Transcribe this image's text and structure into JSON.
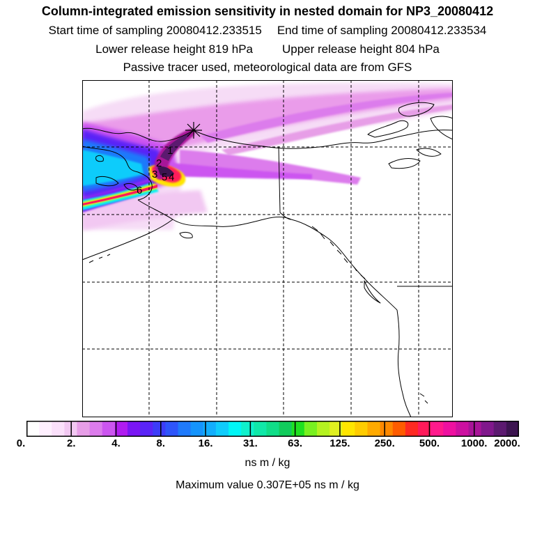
{
  "titles": {
    "line1": "Column-integrated emission sensitivity in nested domain for NP3_20080412",
    "start": "Start time of sampling 20080412.233515",
    "end": "End time of sampling 20080412.233534",
    "lower": "Lower release height  819 hPa",
    "upper": "Upper release height  804 hPa",
    "line4": "Passive tracer used, meteorological data are from GFS"
  },
  "map": {
    "gridlines": "dashed",
    "release_marker": "star-icon",
    "trajectory_labels": [
      "1",
      "2",
      "3",
      "4",
      "5",
      "6"
    ]
  },
  "colorbar": {
    "ticks": [
      "0.",
      "2.",
      "4.",
      "8.",
      "16.",
      "31.",
      "63.",
      "125.",
      "250.",
      "500.",
      "1000.",
      "2000."
    ],
    "colors": [
      "#ffffff",
      "#fff0ff",
      "#fbe0fb",
      "#f2c8f2",
      "#e79ee7",
      "#dc7cec",
      "#cc55f0",
      "#b01cf0",
      "#7a16f4",
      "#5a24f7",
      "#3c3cf8",
      "#2e55fa",
      "#1f7afb",
      "#1594fc",
      "#12aefc",
      "#10ccfb",
      "#00f5f5",
      "#10f0cc",
      "#10e8a8",
      "#10dd88",
      "#11cc5c",
      "#1fe020",
      "#78f020",
      "#b4f220",
      "#e0f020",
      "#ffe600",
      "#ffcc00",
      "#ffaa00",
      "#ff8800",
      "#ff5c00",
      "#ff2a22",
      "#ff1a5a",
      "#ff1a8c",
      "#ee10a0",
      "#cc10a0",
      "#a81498",
      "#80188c",
      "#5c1a70",
      "#3c1450"
    ],
    "units": "ns m / kg"
  },
  "max_value": "Maximum value  0.307E+05 ns m / kg"
}
